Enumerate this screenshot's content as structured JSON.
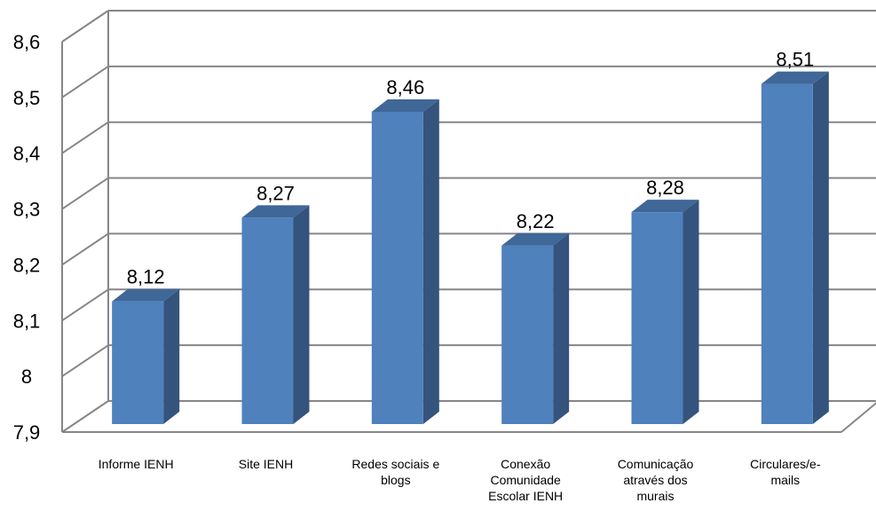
{
  "chart_data": {
    "type": "bar",
    "title": "",
    "xlabel": "",
    "ylabel": "",
    "categories": [
      "Informe IENH",
      "Site IENH",
      "Redes sociais e\nblogs",
      "Conexão\nComunidade\nEscolar IENH",
      "Comunicação\natravés dos\nmurais",
      "Circulares/e-\nmails"
    ],
    "values": [
      8.12,
      8.27,
      8.46,
      8.22,
      8.28,
      8.51
    ],
    "value_labels": [
      "8,12",
      "8,27",
      "8,46",
      "8,22",
      "8,28",
      "8,51"
    ],
    "ylim": [
      7.9,
      8.6
    ],
    "ticks": [
      {
        "value": 7.9,
        "label": "7,9"
      },
      {
        "value": 8.0,
        "label": "8"
      },
      {
        "value": 8.1,
        "label": "8,1"
      },
      {
        "value": 8.2,
        "label": "8,2"
      },
      {
        "value": 8.3,
        "label": "8,3"
      },
      {
        "value": 8.4,
        "label": "8,4"
      },
      {
        "value": 8.5,
        "label": "8,5"
      },
      {
        "value": 8.6,
        "label": "8,6"
      }
    ],
    "grid": true,
    "style": "3d",
    "colors": {
      "bar_front": "#4F81BD",
      "bar_side": "#34547D",
      "bar_top": "#3F6797",
      "grid": "#868686"
    }
  }
}
